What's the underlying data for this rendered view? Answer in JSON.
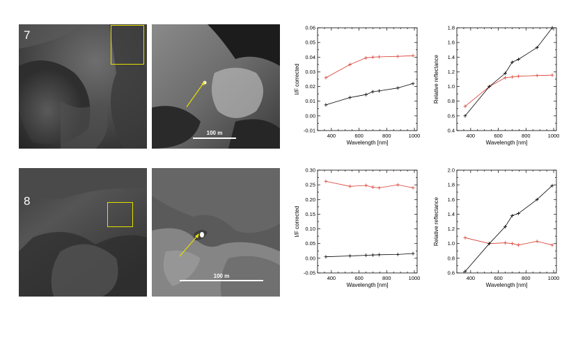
{
  "panels": [
    {
      "label": "7",
      "scale_bar": "100 m"
    },
    {
      "label": "8",
      "scale_bar": "100 m"
    }
  ],
  "colors": {
    "highlight_box": "#e6e000",
    "arrow": "#e6e000",
    "series_red": "#d83a2e",
    "series_black": "#000000"
  },
  "chart_data": [
    {
      "type": "line",
      "title": "",
      "xlabel": "Wavelength [nm]",
      "ylabel": "I/F corrected",
      "xlim": [
        300,
        1020
      ],
      "ylim": [
        -0.01,
        0.06
      ],
      "xticks": [
        400,
        600,
        800,
        1000
      ],
      "yticks": [
        -0.01,
        0.0,
        0.01,
        0.02,
        0.03,
        0.04,
        0.05,
        0.06
      ],
      "ytick_labels": [
        "-0.01",
        "0.00",
        "0.01",
        "0.02",
        "0.03",
        "0.04",
        "0.05",
        "0.06"
      ],
      "x": [
        360,
        535,
        650,
        700,
        745,
        880,
        990
      ],
      "series": [
        {
          "color": "#d83a2e",
          "values": [
            0.026,
            0.035,
            0.0395,
            0.04,
            0.0402,
            0.0405,
            0.041
          ]
        },
        {
          "color": "#000000",
          "values": [
            0.0075,
            0.0125,
            0.0145,
            0.0165,
            0.017,
            0.019,
            0.022
          ]
        }
      ]
    },
    {
      "type": "line",
      "title": "",
      "xlabel": "Wavelength [nm]",
      "ylabel": "Relative reflectance",
      "xlim": [
        300,
        1020
      ],
      "ylim": [
        0.4,
        1.8
      ],
      "xticks": [
        400,
        600,
        800,
        1000
      ],
      "yticks": [
        0.4,
        0.6,
        0.8,
        1.0,
        1.2,
        1.4,
        1.6,
        1.8
      ],
      "ytick_labels": [
        "0.4",
        "0.6",
        "0.8",
        "1.0",
        "1.2",
        "1.4",
        "1.6",
        "1.8"
      ],
      "x": [
        360,
        535,
        650,
        700,
        745,
        880,
        990
      ],
      "series": [
        {
          "color": "#d83a2e",
          "values": [
            0.73,
            1.0,
            1.12,
            1.13,
            1.14,
            1.15,
            1.155
          ]
        },
        {
          "color": "#000000",
          "values": [
            0.6,
            1.0,
            1.18,
            1.33,
            1.37,
            1.53,
            1.8
          ]
        }
      ]
    },
    {
      "type": "line",
      "title": "",
      "xlabel": "Wavelength [nm]",
      "ylabel": "I/F corrected",
      "xlim": [
        300,
        1020
      ],
      "ylim": [
        -0.05,
        0.3
      ],
      "xticks": [
        400,
        600,
        800,
        1000
      ],
      "yticks": [
        -0.05,
        0.0,
        0.05,
        0.1,
        0.15,
        0.2,
        0.25,
        0.3
      ],
      "ytick_labels": [
        "-0.05",
        "0.00",
        "0.05",
        "0.10",
        "0.15",
        "0.20",
        "0.25",
        "0.30"
      ],
      "x": [
        360,
        535,
        650,
        700,
        745,
        880,
        990
      ],
      "series": [
        {
          "color": "#d83a2e",
          "values": [
            0.262,
            0.245,
            0.248,
            0.242,
            0.24,
            0.25,
            0.24
          ]
        },
        {
          "color": "#000000",
          "values": [
            0.005,
            0.008,
            0.01,
            0.011,
            0.012,
            0.013,
            0.016
          ]
        }
      ]
    },
    {
      "type": "line",
      "title": "",
      "xlabel": "Wavelength [nm]",
      "ylabel": "Relative reflectance",
      "xlim": [
        300,
        1020
      ],
      "ylim": [
        0.6,
        2.0
      ],
      "xticks": [
        400,
        600,
        800,
        1000
      ],
      "yticks": [
        0.6,
        0.8,
        1.0,
        1.2,
        1.4,
        1.6,
        1.8,
        2.0
      ],
      "ytick_labels": [
        "0.6",
        "0.8",
        "1.0",
        "1.2",
        "1.4",
        "1.6",
        "1.8",
        "2.0"
      ],
      "x": [
        360,
        535,
        650,
        700,
        745,
        880,
        990
      ],
      "series": [
        {
          "color": "#d83a2e",
          "values": [
            1.08,
            1.0,
            1.01,
            1.0,
            0.98,
            1.03,
            0.98
          ]
        },
        {
          "color": "#000000",
          "values": [
            0.62,
            1.0,
            1.23,
            1.38,
            1.41,
            1.6,
            1.79
          ]
        }
      ]
    }
  ]
}
